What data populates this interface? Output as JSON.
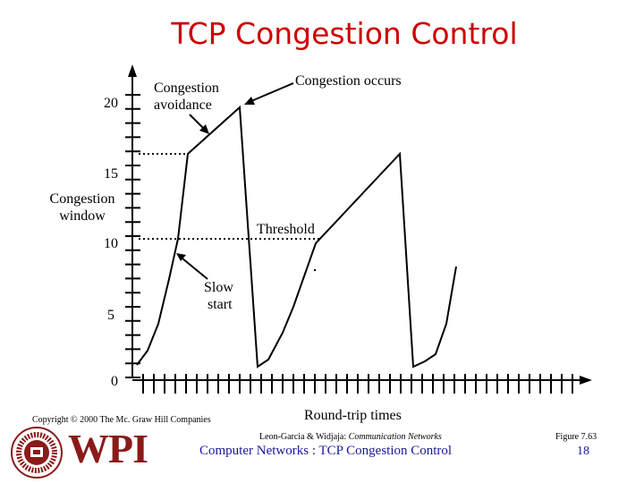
{
  "slide": {
    "title": "TCP Congestion Control",
    "copyright": "Copyright © 2000 The Mc. Graw Hill Companies",
    "citation_prefix": "Leon-Garcia & Widjaja:",
    "citation_book": "Communication Networks",
    "figure": "Figure 7.63",
    "footer_title": "Computer Networks : TCP Congestion Control",
    "page_number": "18",
    "logo_text": "WPI"
  },
  "diagram": {
    "y_axis_label": [
      "Congestion",
      "window"
    ],
    "x_axis_label": "Round-trip times",
    "y_ticks": [
      "20",
      "15",
      "10",
      "5",
      "0"
    ],
    "annotations": {
      "congestion_avoidance": [
        "Congestion",
        "avoidance"
      ],
      "congestion_occurs": "Congestion occurs",
      "threshold": "Threshold",
      "slow_start": [
        "Slow",
        "start"
      ]
    },
    "colors": {
      "title": "#cc0000",
      "footer": "#1a1a99",
      "logo": "#8b1a1a"
    }
  }
}
